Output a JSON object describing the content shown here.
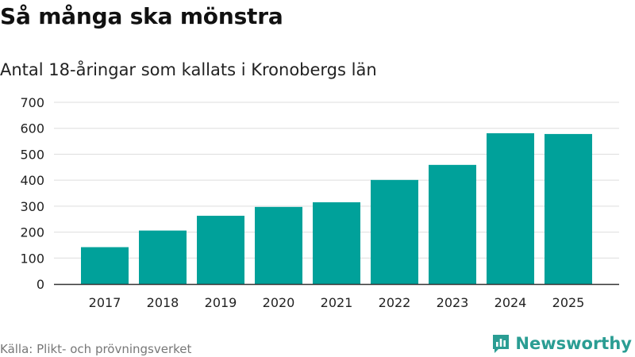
{
  "header": {
    "title": "Så många ska mönstra",
    "subtitle": "Antal 18-åringar som kallats i Kronobergs län"
  },
  "footer": {
    "source": "Källa: Plikt- och prövningsverket",
    "brand": "Newsworthy"
  },
  "colors": {
    "bar": "#00a19a",
    "grid": "#dddddd",
    "axis": "#333333",
    "brand": "#2a9d93"
  },
  "chart_data": {
    "type": "bar",
    "title": "Så många ska mönstra",
    "subtitle": "Antal 18-åringar som kallats i Kronobergs län",
    "xlabel": "",
    "ylabel": "",
    "categories": [
      "2017",
      "2018",
      "2019",
      "2020",
      "2021",
      "2022",
      "2023",
      "2024",
      "2025"
    ],
    "values": [
      142,
      206,
      263,
      297,
      315,
      401,
      459,
      581,
      578
    ],
    "ylim": [
      0,
      700
    ],
    "yticks": [
      0,
      100,
      200,
      300,
      400,
      500,
      600,
      700
    ],
    "grid": true,
    "legend": "none"
  }
}
